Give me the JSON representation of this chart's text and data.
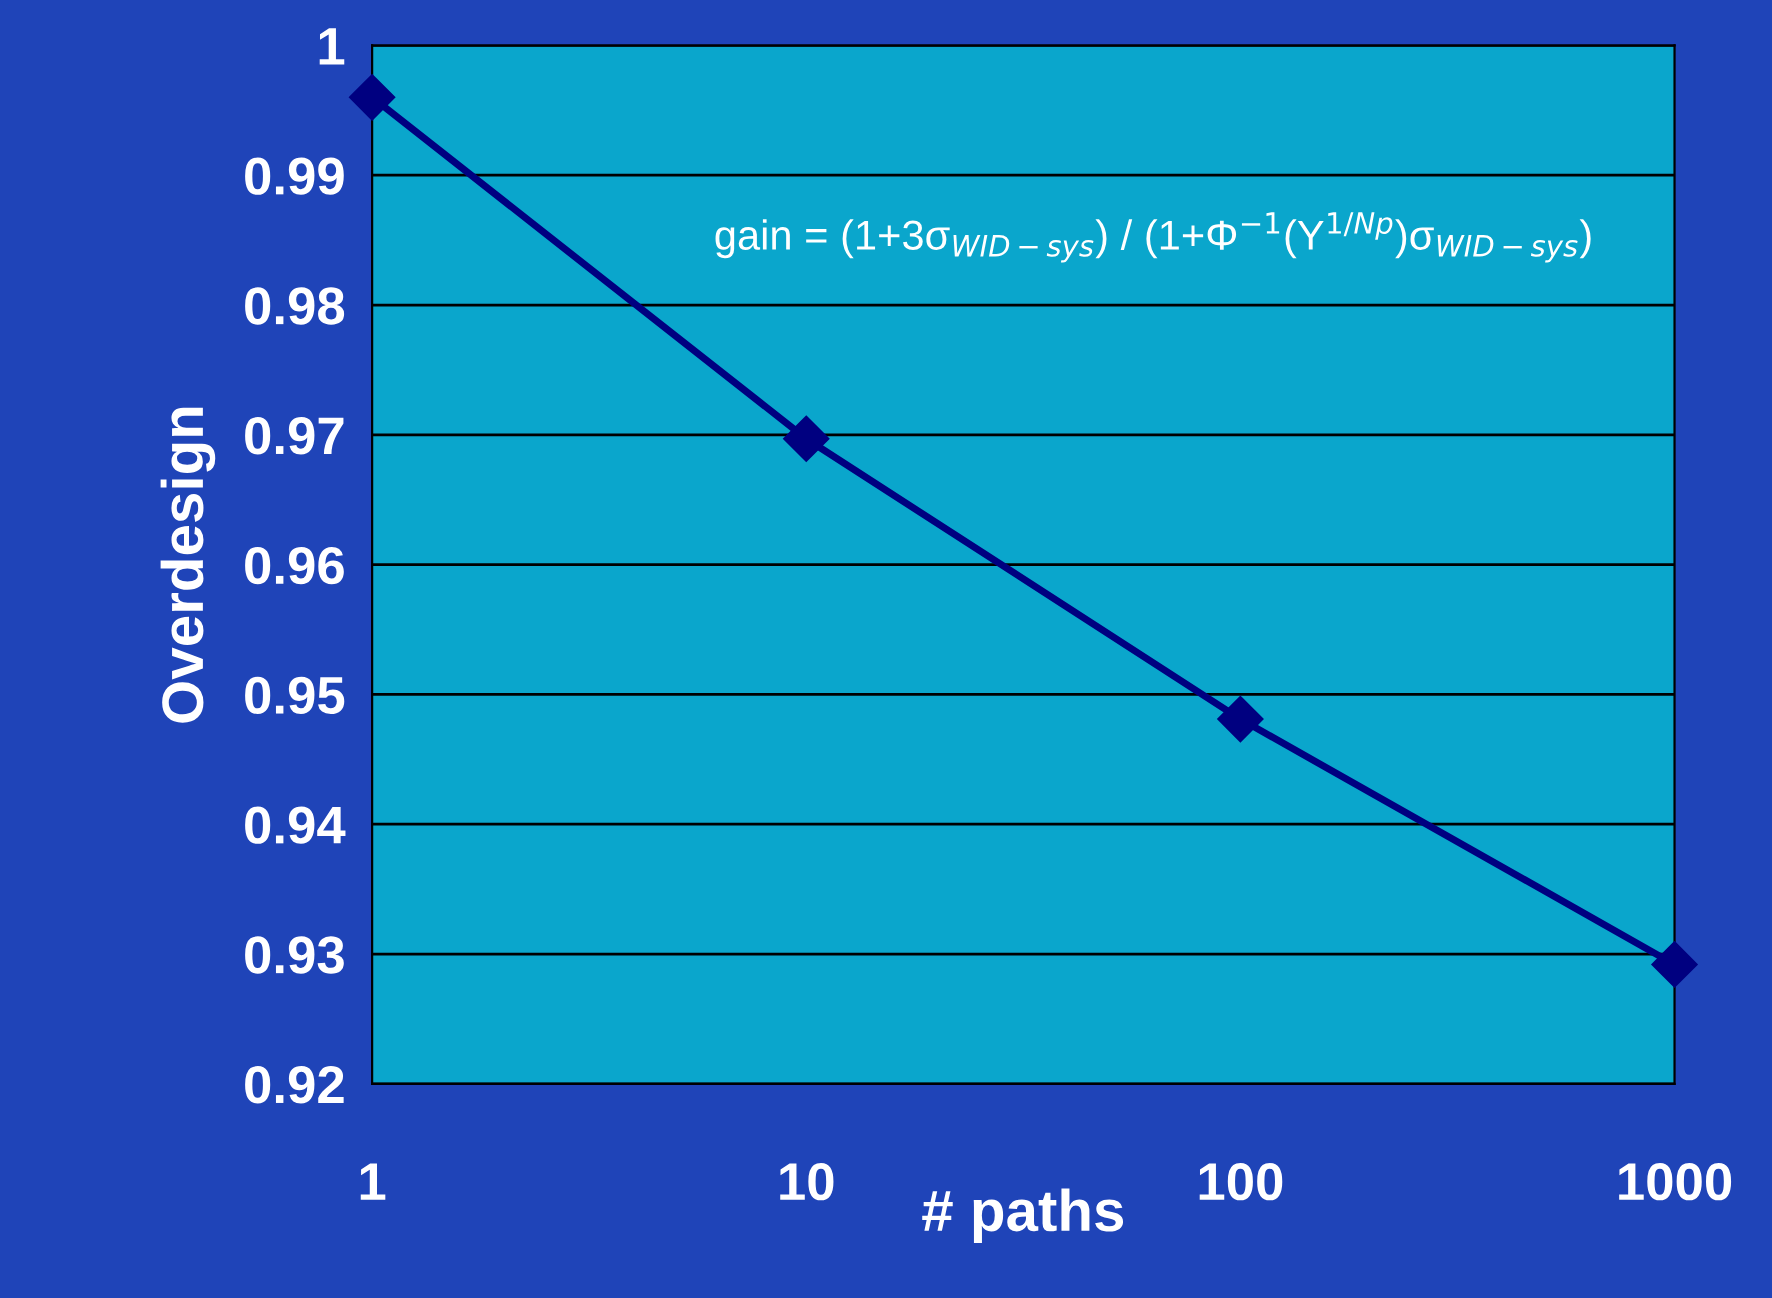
{
  "chart_data": {
    "type": "line",
    "xlabel": "# paths",
    "ylabel": "Overdesign",
    "x": [
      1,
      10,
      100,
      1000
    ],
    "series": [
      {
        "color": "#000080",
        "values": [
          0.996,
          0.9697,
          0.9481,
          0.9292
        ]
      }
    ],
    "xlim": [
      1,
      1000
    ],
    "xticks": [
      1,
      10,
      100,
      1000
    ],
    "ylim": [
      0.92,
      1
    ],
    "yticks": [
      0.92,
      0.93,
      0.94,
      0.95,
      0.96,
      0.97,
      0.98,
      0.99,
      1
    ],
    "log": "x",
    "grid": "y",
    "marker": "diamond",
    "line_style": "solid",
    "annotations": [
      "gain = (1+3σ$_{WID−sys}$) / (1+Φ$^{−1}$(Y$^{1/Np}$)σ$_{WID−sys}$)"
    ]
  }
}
